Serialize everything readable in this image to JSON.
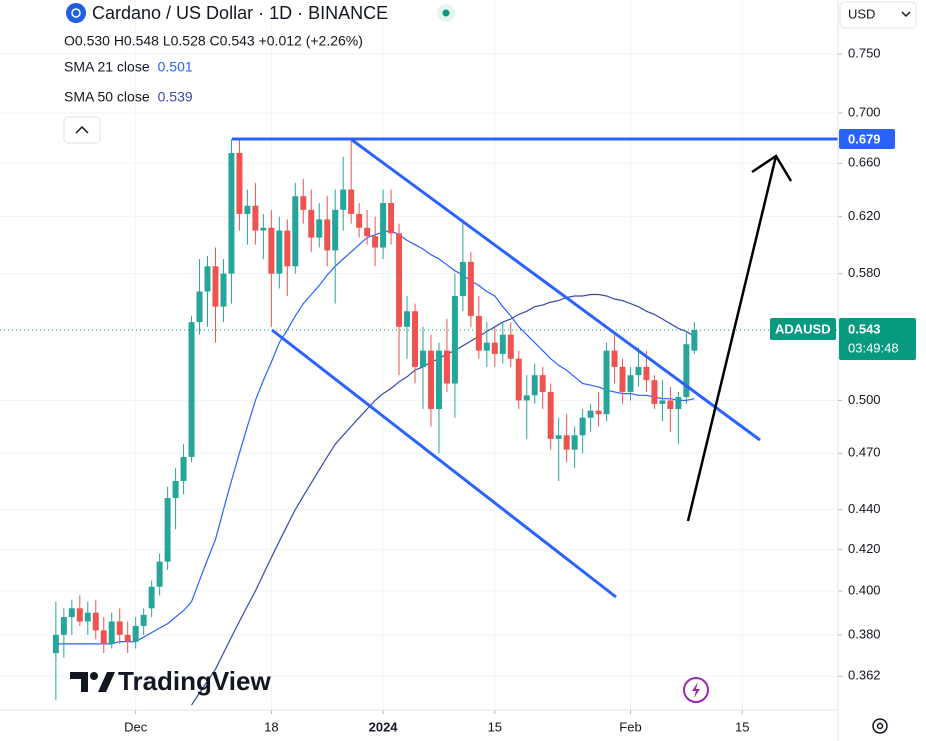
{
  "chart_data": {
    "type": "candlestick",
    "title": "Cardano / US Dollar · 1D · BINANCE",
    "ohlc_label": "O0.530 H0.548 L0.528 C0.543 +0.012 (+2.26%)",
    "currency": "USD",
    "symbol": "ADAUSD",
    "last_price": 0.543,
    "countdown": "03:49:48",
    "resistance": 0.679,
    "brand": "TradingView",
    "log_scale": true,
    "grid": true,
    "up_color": "#26a69a",
    "down_color": "#ef5350",
    "xlim": [
      "2023-11-14",
      "2024-02-27"
    ],
    "xticks": [
      {
        "value": "2023-12-01",
        "label": "Dec"
      },
      {
        "value": "2023-12-18",
        "label": "18"
      },
      {
        "value": "2024-01-01",
        "label": "2024"
      },
      {
        "value": "2024-01-15",
        "label": "15"
      },
      {
        "value": "2024-02-01",
        "label": "Feb"
      },
      {
        "value": "2024-02-15",
        "label": "15"
      }
    ],
    "ylim": [
      0.348,
      0.799
    ],
    "yticks": [
      {
        "value": 0.75,
        "label": "0.750"
      },
      {
        "value": 0.7,
        "label": "0.700"
      },
      {
        "value": 0.66,
        "label": "0.660"
      },
      {
        "value": 0.62,
        "label": "0.620"
      },
      {
        "value": 0.58,
        "label": "0.580"
      },
      {
        "value": 0.5,
        "label": "0.500"
      },
      {
        "value": 0.47,
        "label": "0.470"
      },
      {
        "value": 0.44,
        "label": "0.440"
      },
      {
        "value": 0.42,
        "label": "0.420"
      },
      {
        "value": 0.4,
        "label": "0.400"
      },
      {
        "value": 0.38,
        "label": "0.380"
      },
      0.362
    ],
    "x": [
      "2023-11-21",
      "2023-11-22",
      "2023-11-23",
      "2023-11-24",
      "2023-11-25",
      "2023-11-26",
      "2023-11-27",
      "2023-11-28",
      "2023-11-29",
      "2023-11-30",
      "2023-12-01",
      "2023-12-02",
      "2023-12-03",
      "2023-12-04",
      "2023-12-05",
      "2023-12-06",
      "2023-12-07",
      "2023-12-08",
      "2023-12-09",
      "2023-12-10",
      "2023-12-11",
      "2023-12-12",
      "2023-12-13",
      "2023-12-14",
      "2023-12-15",
      "2023-12-16",
      "2023-12-17",
      "2023-12-18",
      "2023-12-19",
      "2023-12-20",
      "2023-12-21",
      "2023-12-22",
      "2023-12-23",
      "2023-12-24",
      "2023-12-25",
      "2023-12-26",
      "2023-12-27",
      "2023-12-28",
      "2023-12-29",
      "2023-12-30",
      "2023-12-31",
      "2024-01-01",
      "2024-01-02",
      "2024-01-03",
      "2024-01-04",
      "2024-01-05",
      "2024-01-06",
      "2024-01-07",
      "2024-01-08",
      "2024-01-09",
      "2024-01-10",
      "2024-01-11",
      "2024-01-12",
      "2024-01-13",
      "2024-01-14",
      "2024-01-15",
      "2024-01-16",
      "2024-01-17",
      "2024-01-18",
      "2024-01-19",
      "2024-01-20",
      "2024-01-21",
      "2024-01-22",
      "2024-01-23",
      "2024-01-24",
      "2024-01-25",
      "2024-01-26",
      "2024-01-27",
      "2024-01-28",
      "2024-01-29",
      "2024-01-30",
      "2024-01-31",
      "2024-02-01",
      "2024-02-02",
      "2024-02-03",
      "2024-02-04",
      "2024-02-05",
      "2024-02-06",
      "2024-02-07",
      "2024-02-08",
      "2024-02-09"
    ],
    "open": [
      0.372,
      0.38,
      0.388,
      0.392,
      0.386,
      0.39,
      0.382,
      0.376,
      0.386,
      0.38,
      0.377,
      0.384,
      0.392,
      0.402,
      0.414,
      0.446,
      0.455,
      0.468,
      0.548,
      0.568,
      0.585,
      0.558,
      0.58,
      0.668,
      0.622,
      0.628,
      0.61,
      0.612,
      0.58,
      0.61,
      0.585,
      0.635,
      0.625,
      0.605,
      0.618,
      0.596,
      0.625,
      0.64,
      0.622,
      0.612,
      0.606,
      0.598,
      0.63,
      0.608,
      0.545,
      0.555,
      0.52,
      0.53,
      0.495,
      0.53,
      0.51,
      0.565,
      0.588,
      0.552,
      0.53,
      0.535,
      0.528,
      0.54,
      0.525,
      0.5,
      0.503,
      0.515,
      0.505,
      0.478,
      0.48,
      0.472,
      0.48,
      0.49,
      0.494,
      0.492,
      0.53,
      0.52,
      0.505,
      0.515,
      0.52,
      0.512,
      0.498,
      0.5,
      0.495,
      0.502,
      0.53
    ],
    "high": [
      0.395,
      0.392,
      0.396,
      0.398,
      0.395,
      0.396,
      0.388,
      0.39,
      0.392,
      0.386,
      0.388,
      0.392,
      0.405,
      0.418,
      0.452,
      0.462,
      0.475,
      0.552,
      0.59,
      0.592,
      0.598,
      0.59,
      0.679,
      0.679,
      0.64,
      0.645,
      0.622,
      0.625,
      0.62,
      0.618,
      0.645,
      0.648,
      0.64,
      0.63,
      0.635,
      0.64,
      0.665,
      0.679,
      0.63,
      0.625,
      0.62,
      0.64,
      0.64,
      0.615,
      0.565,
      0.56,
      0.545,
      0.54,
      0.535,
      0.55,
      0.58,
      0.618,
      0.595,
      0.565,
      0.548,
      0.545,
      0.548,
      0.548,
      0.53,
      0.515,
      0.522,
      0.52,
      0.51,
      0.49,
      0.492,
      0.485,
      0.495,
      0.498,
      0.505,
      0.535,
      0.54,
      0.525,
      0.52,
      0.532,
      0.53,
      0.515,
      0.512,
      0.508,
      0.505,
      0.542,
      0.548
    ],
    "low": [
      0.352,
      0.37,
      0.38,
      0.384,
      0.38,
      0.378,
      0.372,
      0.374,
      0.376,
      0.372,
      0.374,
      0.38,
      0.388,
      0.398,
      0.41,
      0.43,
      0.448,
      0.465,
      0.54,
      0.545,
      0.535,
      0.548,
      0.56,
      0.61,
      0.6,
      0.6,
      0.59,
      0.545,
      0.57,
      0.565,
      0.58,
      0.615,
      0.595,
      0.598,
      0.585,
      0.56,
      0.61,
      0.615,
      0.605,
      0.6,
      0.585,
      0.59,
      0.6,
      0.515,
      0.525,
      0.51,
      0.495,
      0.485,
      0.47,
      0.505,
      0.49,
      0.555,
      0.545,
      0.525,
      0.52,
      0.52,
      0.522,
      0.52,
      0.495,
      0.478,
      0.498,
      0.495,
      0.472,
      0.455,
      0.465,
      0.462,
      0.47,
      0.482,
      0.485,
      0.488,
      0.51,
      0.498,
      0.5,
      0.508,
      0.505,
      0.495,
      0.488,
      0.482,
      0.475,
      0.498,
      0.528
    ],
    "close": [
      0.38,
      0.388,
      0.392,
      0.386,
      0.39,
      0.382,
      0.376,
      0.386,
      0.38,
      0.377,
      0.384,
      0.389,
      0.402,
      0.414,
      0.446,
      0.455,
      0.468,
      0.548,
      0.568,
      0.585,
      0.558,
      0.58,
      0.668,
      0.622,
      0.628,
      0.61,
      0.612,
      0.58,
      0.61,
      0.585,
      0.635,
      0.625,
      0.605,
      0.618,
      0.596,
      0.625,
      0.64,
      0.622,
      0.612,
      0.606,
      0.598,
      0.63,
      0.608,
      0.545,
      0.555,
      0.52,
      0.53,
      0.495,
      0.53,
      0.51,
      0.565,
      0.588,
      0.552,
      0.53,
      0.535,
      0.528,
      0.54,
      0.525,
      0.5,
      0.503,
      0.515,
      0.505,
      0.478,
      0.48,
      0.472,
      0.48,
      0.49,
      0.494,
      0.492,
      0.53,
      0.52,
      0.505,
      0.515,
      0.52,
      0.512,
      0.498,
      0.5,
      0.495,
      0.502,
      0.534,
      0.543
    ],
    "series": [
      {
        "name": "SMA 21 close",
        "color": "#2962ff",
        "last_value": 0.501,
        "values": [
          0.376,
          0.376,
          0.376,
          0.376,
          0.376,
          0.376,
          0.376,
          0.376,
          0.377,
          0.377,
          0.377,
          0.379,
          0.381,
          0.383,
          0.385,
          0.388,
          0.391,
          0.395,
          0.405,
          0.415,
          0.425,
          0.44,
          0.455,
          0.47,
          0.485,
          0.5,
          0.512,
          0.523,
          0.535,
          0.543,
          0.552,
          0.56,
          0.566,
          0.572,
          0.579,
          0.585,
          0.59,
          0.595,
          0.6,
          0.605,
          0.607,
          0.609,
          0.61,
          0.607,
          0.603,
          0.6,
          0.597,
          0.593,
          0.59,
          0.586,
          0.582,
          0.579,
          0.575,
          0.572,
          0.568,
          0.565,
          0.558,
          0.552,
          0.545,
          0.54,
          0.535,
          0.53,
          0.525,
          0.521,
          0.518,
          0.514,
          0.51,
          0.509,
          0.508,
          0.506,
          0.505,
          0.504,
          0.504,
          0.503,
          0.503,
          0.502,
          0.501,
          0.501,
          0.5,
          0.5,
          0.501
        ]
      },
      {
        "name": "SMA 50 close",
        "color": "#3949ab",
        "last_value": 0.539,
        "values": [
          null,
          null,
          null,
          null,
          null,
          null,
          null,
          null,
          null,
          null,
          null,
          null,
          null,
          null,
          null,
          null,
          null,
          0.35,
          0.355,
          0.36,
          0.365,
          0.372,
          0.379,
          0.386,
          0.393,
          0.4,
          0.408,
          0.416,
          0.424,
          0.432,
          0.44,
          0.447,
          0.454,
          0.461,
          0.468,
          0.475,
          0.48,
          0.485,
          0.49,
          0.495,
          0.5,
          0.504,
          0.507,
          0.511,
          0.514,
          0.518,
          0.52,
          0.523,
          0.525,
          0.528,
          0.53,
          0.533,
          0.536,
          0.539,
          0.542,
          0.545,
          0.548,
          0.55,
          0.553,
          0.555,
          0.558,
          0.559,
          0.561,
          0.562,
          0.564,
          0.565,
          0.565,
          0.566,
          0.566,
          0.565,
          0.563,
          0.562,
          0.56,
          0.558,
          0.555,
          0.553,
          0.55,
          0.547,
          0.544,
          0.542,
          0.539
        ]
      }
    ]
  }
}
